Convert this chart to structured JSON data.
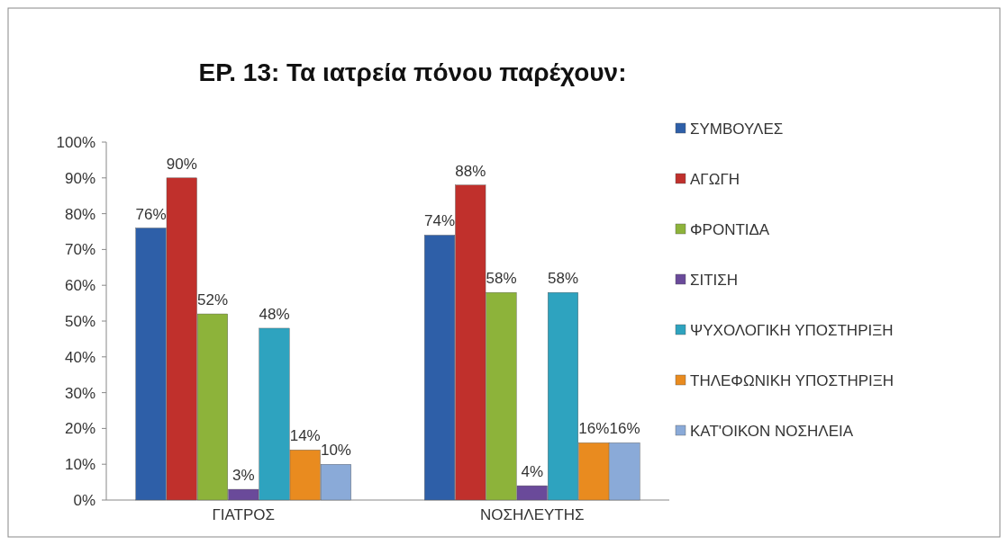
{
  "chart_data": {
    "type": "bar",
    "title": "ΕΡ. 13: Τα ιατρεία πόνου παρέχουν:",
    "categories": [
      "ΓΙΑΤΡΟΣ",
      "ΝΟΣΗΛΕΥΤΗΣ"
    ],
    "series": [
      {
        "name": "ΣΥΜΒΟΥΛΕΣ",
        "color": "#2e5fa8",
        "values": [
          76,
          74
        ],
        "value_labels": [
          "76%",
          "74%"
        ]
      },
      {
        "name": "ΑΓΩΓΗ",
        "color": "#c0302c",
        "values": [
          90,
          88
        ],
        "value_labels": [
          "90%",
          "88%"
        ]
      },
      {
        "name": "ΦΡΟΝΤΙΔΑ",
        "color": "#8db33a",
        "values": [
          52,
          58
        ],
        "value_labels": [
          "52%",
          "58%"
        ]
      },
      {
        "name": "ΣΙΤΙΣΗ",
        "color": "#6a4a9a",
        "values": [
          3,
          4
        ],
        "value_labels": [
          "3%",
          "4%"
        ]
      },
      {
        "name": "ΨΥΧΟΛΟΓΙΚΗ ΥΠΟΣΤΗΡΙΞΗ",
        "color": "#2ea3bf",
        "values": [
          48,
          58
        ],
        "value_labels": [
          "48%",
          "58%"
        ]
      },
      {
        "name": "ΤΗΛΕΦΩΝΙΚΗ ΥΠΟΣΤΗΡΙΞΗ",
        "color": "#e98b1f",
        "values": [
          14,
          16
        ],
        "value_labels": [
          "14%",
          "16%"
        ]
      },
      {
        "name": "ΚΑΤ'ΟΙΚΟΝ ΝΟΣΗΛΕΙΑ",
        "color": "#8aaad8",
        "values": [
          10,
          16
        ],
        "value_labels": [
          "10%",
          "16%"
        ]
      }
    ],
    "ylim": [
      0,
      100
    ],
    "yticks": [
      {
        "value": 0,
        "label": "0%"
      },
      {
        "value": 10,
        "label": "10%"
      },
      {
        "value": 20,
        "label": "20%"
      },
      {
        "value": 30,
        "label": "30%"
      },
      {
        "value": 40,
        "label": "40%"
      },
      {
        "value": 50,
        "label": "50%"
      },
      {
        "value": 60,
        "label": "60%"
      },
      {
        "value": 70,
        "label": "70%"
      },
      {
        "value": 80,
        "label": "80%"
      },
      {
        "value": 90,
        "label": "90%"
      },
      {
        "value": 100,
        "label": "100%"
      }
    ],
    "legend": "right"
  }
}
